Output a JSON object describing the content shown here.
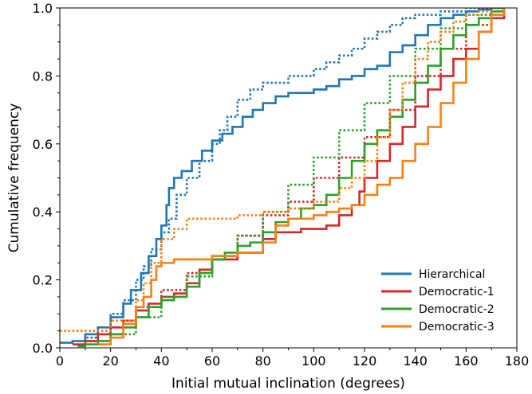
{
  "chart_data": {
    "type": "line",
    "title": "",
    "xlabel": "Initial mutual inclination (degrees)",
    "ylabel": "Cumulative frequency",
    "xlim": [
      0,
      180
    ],
    "ylim": [
      0,
      1
    ],
    "xticks": [
      "0",
      "20",
      "40",
      "60",
      "80",
      "100",
      "120",
      "140",
      "160",
      "180"
    ],
    "yticks": [
      "0.0",
      "0.2",
      "0.4",
      "0.6",
      "0.8",
      "1.0"
    ],
    "grid": false,
    "legend_position": "lower-right",
    "series": [
      {
        "name": "Hierarchical",
        "color": "#1f77b4",
        "style": "solid",
        "x": [
          0,
          5,
          10,
          15,
          20,
          25,
          28,
          32,
          35,
          38,
          40,
          42,
          43,
          45,
          48,
          52,
          56,
          60,
          64,
          68,
          72,
          76,
          80,
          85,
          90,
          95,
          100,
          105,
          110,
          115,
          120,
          125,
          130,
          135,
          140,
          145,
          150,
          155,
          160,
          165,
          170,
          175
        ],
        "y": [
          0.015,
          0.02,
          0.04,
          0.06,
          0.09,
          0.13,
          0.17,
          0.22,
          0.27,
          0.32,
          0.36,
          0.42,
          0.47,
          0.5,
          0.52,
          0.55,
          0.58,
          0.61,
          0.63,
          0.65,
          0.68,
          0.7,
          0.72,
          0.74,
          0.75,
          0.75,
          0.76,
          0.77,
          0.79,
          0.8,
          0.82,
          0.83,
          0.87,
          0.89,
          0.92,
          0.95,
          0.97,
          0.98,
          0.99,
          0.995,
          1.0,
          1.0
        ]
      },
      {
        "name": "",
        "color": "#1f77b4",
        "style": "dotted",
        "x": [
          5,
          10,
          15,
          20,
          25,
          30,
          33,
          36,
          40,
          43,
          46,
          50,
          55,
          60,
          63,
          66,
          70,
          75,
          80,
          90,
          100,
          105,
          110,
          115,
          120,
          125,
          130,
          135,
          140,
          150,
          160,
          170,
          175
        ],
        "y": [
          0.01,
          0.03,
          0.06,
          0.1,
          0.14,
          0.2,
          0.24,
          0.29,
          0.34,
          0.38,
          0.45,
          0.5,
          0.55,
          0.6,
          0.64,
          0.68,
          0.73,
          0.76,
          0.78,
          0.8,
          0.82,
          0.84,
          0.86,
          0.88,
          0.91,
          0.93,
          0.95,
          0.97,
          0.98,
          0.99,
          1.0,
          1.0,
          1.0
        ]
      },
      {
        "name": "Democratic-1",
        "color": "#d62728",
        "style": "solid",
        "x": [
          5,
          10,
          15,
          20,
          25,
          30,
          35,
          40,
          45,
          50,
          55,
          60,
          70,
          80,
          85,
          90,
          95,
          100,
          105,
          110,
          115,
          118,
          120,
          125,
          130,
          135,
          140,
          145,
          150,
          155,
          160,
          165,
          170,
          175
        ],
        "y": [
          0.01,
          0.02,
          0.04,
          0.06,
          0.08,
          0.11,
          0.13,
          0.15,
          0.16,
          0.19,
          0.23,
          0.26,
          0.28,
          0.32,
          0.34,
          0.34,
          0.35,
          0.35,
          0.36,
          0.39,
          0.42,
          0.46,
          0.5,
          0.55,
          0.6,
          0.65,
          0.71,
          0.76,
          0.8,
          0.85,
          0.88,
          0.93,
          0.97,
          1.0
        ]
      },
      {
        "name": "",
        "color": "#d62728",
        "style": "dotted",
        "x": [
          10,
          20,
          30,
          40,
          50,
          60,
          70,
          80,
          90,
          100,
          110,
          120,
          130,
          140,
          150,
          160,
          170
        ],
        "y": [
          0.02,
          0.06,
          0.12,
          0.17,
          0.22,
          0.27,
          0.33,
          0.39,
          0.43,
          0.5,
          0.56,
          0.62,
          0.7,
          0.8,
          0.88,
          0.95,
          1.0
        ]
      },
      {
        "name": "Democratic-2",
        "color": "#2ca02c",
        "style": "solid",
        "x": [
          7,
          10,
          15,
          20,
          25,
          30,
          35,
          40,
          45,
          50,
          55,
          60,
          65,
          70,
          75,
          80,
          85,
          90,
          95,
          100,
          105,
          110,
          115,
          120,
          125,
          130,
          135,
          140,
          145,
          150,
          155,
          160,
          165,
          170,
          175
        ],
        "y": [
          0.005,
          0.01,
          0.02,
          0.04,
          0.06,
          0.09,
          0.12,
          0.14,
          0.15,
          0.18,
          0.22,
          0.26,
          0.28,
          0.3,
          0.31,
          0.34,
          0.37,
          0.38,
          0.41,
          0.42,
          0.45,
          0.5,
          0.55,
          0.6,
          0.64,
          0.68,
          0.73,
          0.78,
          0.83,
          0.88,
          0.92,
          0.95,
          0.97,
          0.99,
          1.0
        ]
      },
      {
        "name": "",
        "color": "#2ca02c",
        "style": "dotted",
        "x": [
          10,
          20,
          30,
          40,
          50,
          60,
          70,
          80,
          90,
          100,
          110,
          120,
          130,
          140,
          150,
          160,
          170
        ],
        "y": [
          0.01,
          0.04,
          0.09,
          0.15,
          0.21,
          0.27,
          0.33,
          0.4,
          0.48,
          0.56,
          0.64,
          0.72,
          0.8,
          0.88,
          0.94,
          0.98,
          1.0
        ]
      },
      {
        "name": "Democratic-3",
        "color": "#ff7f0e",
        "style": "solid",
        "x": [
          15,
          20,
          25,
          30,
          33,
          36,
          38,
          40,
          45,
          50,
          55,
          60,
          70,
          80,
          85,
          90,
          100,
          105,
          110,
          115,
          120,
          125,
          130,
          135,
          140,
          145,
          150,
          155,
          160,
          165,
          170,
          175
        ],
        "y": [
          0.01,
          0.03,
          0.07,
          0.12,
          0.15,
          0.2,
          0.24,
          0.25,
          0.26,
          0.26,
          0.26,
          0.27,
          0.28,
          0.31,
          0.36,
          0.38,
          0.39,
          0.4,
          0.41,
          0.42,
          0.45,
          0.48,
          0.5,
          0.55,
          0.6,
          0.65,
          0.72,
          0.78,
          0.85,
          0.93,
          0.98,
          1.0
        ]
      },
      {
        "name": "",
        "color": "#ff7f0e",
        "style": "dotted",
        "x": [
          0,
          10,
          20,
          30,
          33,
          36,
          40,
          45,
          50,
          55,
          60,
          70,
          80,
          90,
          100,
          110,
          115,
          120,
          125,
          130,
          135,
          140,
          145,
          150,
          155,
          160,
          165,
          170,
          175
        ],
        "y": [
          0.05,
          0.05,
          0.08,
          0.14,
          0.19,
          0.25,
          0.32,
          0.35,
          0.38,
          0.38,
          0.38,
          0.39,
          0.4,
          0.41,
          0.43,
          0.47,
          0.5,
          0.55,
          0.62,
          0.7,
          0.78,
          0.85,
          0.9,
          0.93,
          0.96,
          0.98,
          0.99,
          1.0,
          1.0
        ]
      }
    ]
  }
}
